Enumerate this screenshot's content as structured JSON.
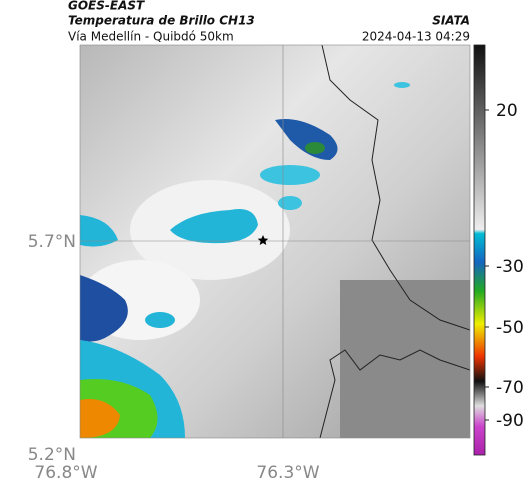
{
  "header": {
    "source": "GOES-EAST",
    "title": "Temperatura de Brillo CH13",
    "subtitle": "Vía Medellín - Quibdó 50km",
    "brand": "SIATA",
    "timestamp": "2024-04-13 04:29"
  },
  "map": {
    "lat_labels": [
      "5.7°N",
      "5.2°N"
    ],
    "lon_labels": [
      "76.8°W",
      "76.3°W"
    ]
  },
  "colorbar": {
    "tick_labels": [
      "20",
      "-30",
      "-50",
      "-70",
      "-90"
    ]
  }
}
